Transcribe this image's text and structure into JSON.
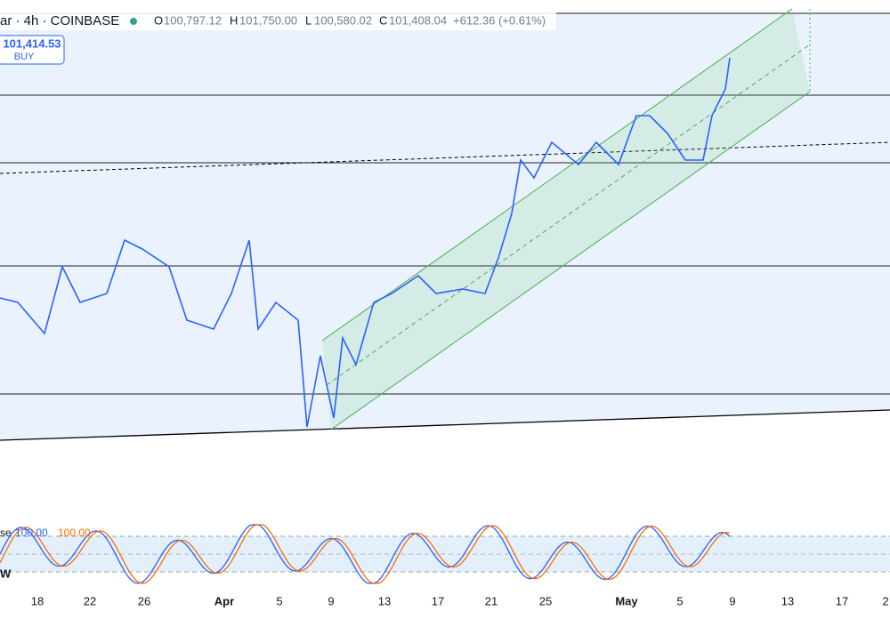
{
  "header": {
    "symbol": "ar · 4h · COINBASE",
    "open_label": "O",
    "open": "100,797.12",
    "high_label": "H",
    "high": "101,750.00",
    "low_label": "L",
    "low": "100,580.02",
    "close_label": "C",
    "close": "101,408.04",
    "change": "+612.36 (+0.61%)"
  },
  "buy_button": {
    "price": "101,414.53",
    "label": "BUY"
  },
  "indicator": {
    "name": "se",
    "k": "100.00",
    "d": "100.00",
    "tag": "W"
  },
  "x_axis": [
    "18",
    "22",
    "26",
    "Apr",
    "5",
    "9",
    "13",
    "17",
    "21",
    "25",
    "May",
    "5",
    "9",
    "13",
    "17",
    "2"
  ]
}
